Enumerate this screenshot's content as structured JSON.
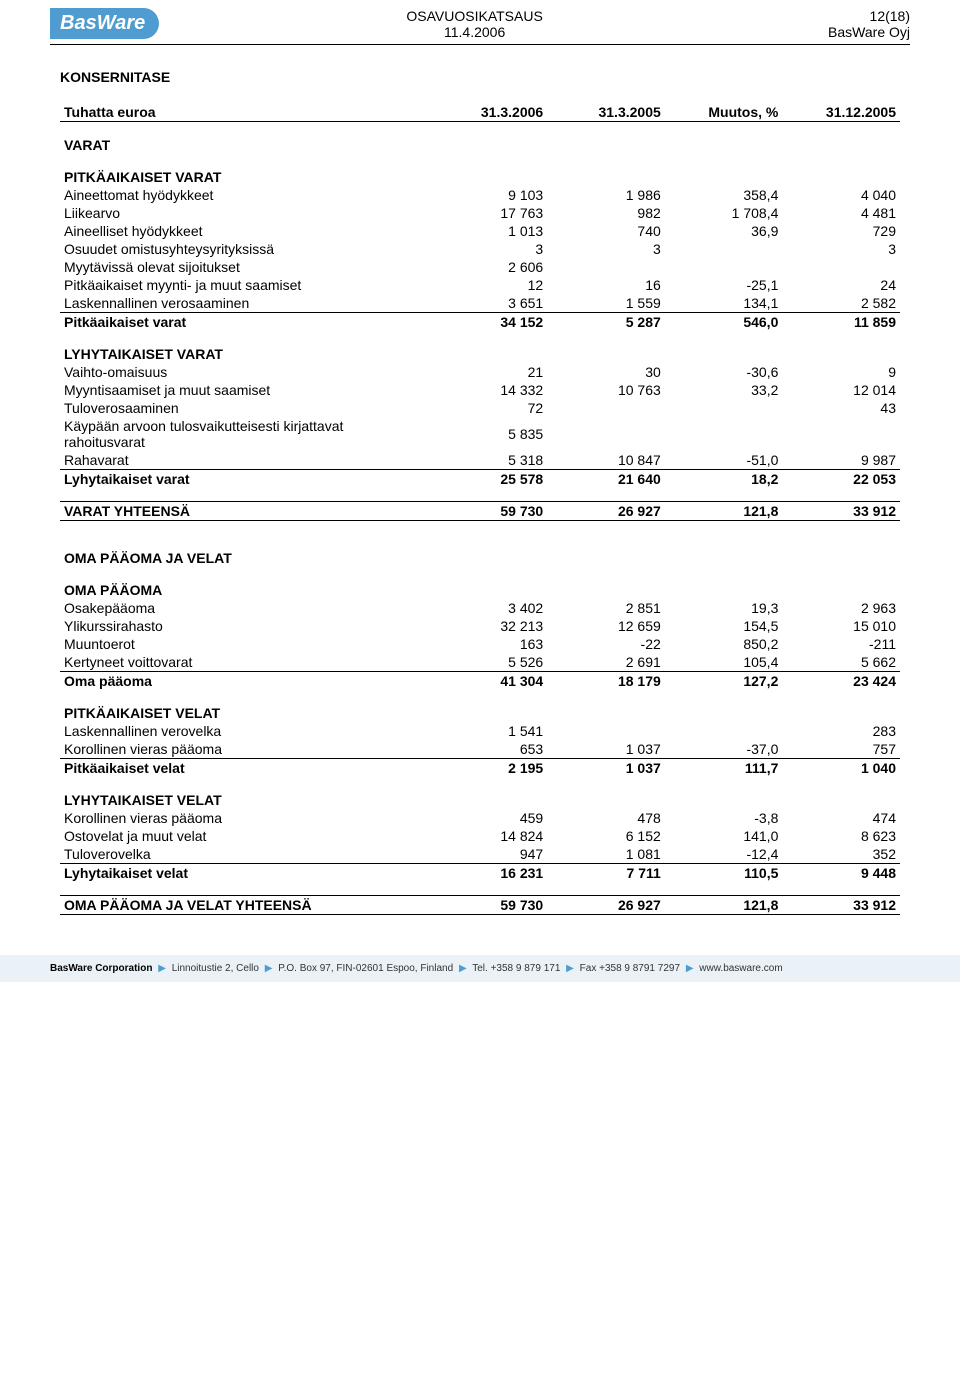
{
  "header": {
    "logo": "BasWare",
    "mid1": "OSAVUOSIKATSAUS",
    "mid2": "11.4.2006",
    "right1": "12(18)",
    "right2": "BasWare Oyj"
  },
  "page": {
    "title": "KONSERNITASE",
    "colhdr": {
      "c0": "Tuhatta euroa",
      "c1": "31.3.2006",
      "c2": "31.3.2005",
      "c3": "Muutos, %",
      "c4": "31.12.2005"
    },
    "sections": [
      {
        "title": "VARAT",
        "groups": [
          {
            "title": "PITKÄAIKAISET VARAT",
            "rows": [
              {
                "l": "Aineettomat hyödykkeet",
                "v": [
                  "9 103",
                  "1 986",
                  "358,4",
                  "4 040"
                ]
              },
              {
                "l": "Liikearvo",
                "v": [
                  "17 763",
                  "982",
                  "1 708,4",
                  "4 481"
                ]
              },
              {
                "l": "Aineelliset hyödykkeet",
                "v": [
                  "1 013",
                  "740",
                  "36,9",
                  "729"
                ]
              },
              {
                "l": "Osuudet omistusyhteysyrityksissä",
                "v": [
                  "3",
                  "3",
                  "",
                  "3"
                ]
              },
              {
                "l": "Myytävissä olevat sijoitukset",
                "v": [
                  "2 606",
                  "",
                  "",
                  ""
                ]
              },
              {
                "l": "Pitkäaikaiset myynti- ja muut saamiset",
                "v": [
                  "12",
                  "16",
                  "-25,1",
                  "24"
                ]
              },
              {
                "l": "Laskennallinen verosaaminen",
                "v": [
                  "3 651",
                  "1 559",
                  "134,1",
                  "2 582"
                ],
                "uline": true
              }
            ],
            "total": {
              "l": "Pitkäaikaiset varat",
              "v": [
                "34 152",
                "5 287",
                "546,0",
                "11 859"
              ]
            }
          },
          {
            "title": "LYHYTAIKAISET VARAT",
            "rows": [
              {
                "l": "Vaihto-omaisuus",
                "v": [
                  "21",
                  "30",
                  "-30,6",
                  "9"
                ]
              },
              {
                "l": "Myyntisaamiset ja muut saamiset",
                "v": [
                  "14 332",
                  "10 763",
                  "33,2",
                  "12 014"
                ]
              },
              {
                "l": "Tuloverosaaminen",
                "v": [
                  "72",
                  "",
                  "",
                  "43"
                ]
              },
              {
                "l": "Käypään arvoon tulosvaikutteisesti kirjattavat rahoitusvarat",
                "v": [
                  "5 835",
                  "",
                  "",
                  ""
                ]
              },
              {
                "l": "Rahavarat",
                "v": [
                  "5 318",
                  "10 847",
                  "-51,0",
                  "9 987"
                ],
                "uline": true
              }
            ],
            "total": {
              "l": "Lyhytaikaiset varat",
              "v": [
                "25 578",
                "21 640",
                "18,2",
                "22 053"
              ]
            }
          }
        ],
        "grandtotal": {
          "l": "VARAT YHTEENSÄ",
          "v": [
            "59 730",
            "26 927",
            "121,8",
            "33 912"
          ]
        }
      },
      {
        "title": "OMA PÄÄOMA JA VELAT",
        "groups": [
          {
            "title": "OMA PÄÄOMA",
            "rows": [
              {
                "l": "Osakepääoma",
                "v": [
                  "3 402",
                  "2 851",
                  "19,3",
                  "2 963"
                ]
              },
              {
                "l": "Ylikurssirahasto",
                "v": [
                  "32 213",
                  "12 659",
                  "154,5",
                  "15 010"
                ]
              },
              {
                "l": "Muuntoerot",
                "v": [
                  "163",
                  "-22",
                  "850,2",
                  "-211"
                ]
              },
              {
                "l": "Kertyneet voittovarat",
                "v": [
                  "5 526",
                  "2 691",
                  "105,4",
                  "5 662"
                ],
                "uline": true
              }
            ],
            "total": {
              "l": "Oma pääoma",
              "v": [
                "41 304",
                "18 179",
                "127,2",
                "23 424"
              ]
            }
          },
          {
            "title": "PITKÄAIKAISET VELAT",
            "rows": [
              {
                "l": "Laskennallinen verovelka",
                "v": [
                  "1 541",
                  "",
                  "",
                  "283"
                ]
              },
              {
                "l": "Korollinen vieras pääoma",
                "v": [
                  "653",
                  "1 037",
                  "-37,0",
                  "757"
                ],
                "uline": true
              }
            ],
            "total": {
              "l": "Pitkäaikaiset velat",
              "v": [
                "2 195",
                "1 037",
                "111,7",
                "1 040"
              ]
            }
          },
          {
            "title": "LYHYTAIKAISET VELAT",
            "rows": [
              {
                "l": "Korollinen vieras pääoma",
                "v": [
                  "459",
                  "478",
                  "-3,8",
                  "474"
                ]
              },
              {
                "l": "Ostovelat ja muut velat",
                "v": [
                  "14 824",
                  "6 152",
                  "141,0",
                  "8 623"
                ]
              },
              {
                "l": "Tuloverovelka",
                "v": [
                  "947",
                  "1 081",
                  "-12,4",
                  "352"
                ],
                "uline": true
              }
            ],
            "total": {
              "l": "Lyhytaikaiset velat",
              "v": [
                "16 231",
                "7 711",
                "110,5",
                "9 448"
              ]
            }
          }
        ],
        "grandtotal": {
          "l": "OMA PÄÄOMA JA VELAT YHTEENSÄ",
          "v": [
            "59 730",
            "26 927",
            "121,8",
            "33 912"
          ]
        }
      }
    ]
  },
  "footer": {
    "company": "BasWare Corporation",
    "addr1": "Linnoitustie 2, Cello",
    "addr2": "P.O. Box 97, FIN-02601 Espoo, Finland",
    "tel": "Tel. +358 9 879 171",
    "fax": "Fax +358 9 8791 7297",
    "web": "www.basware.com"
  }
}
